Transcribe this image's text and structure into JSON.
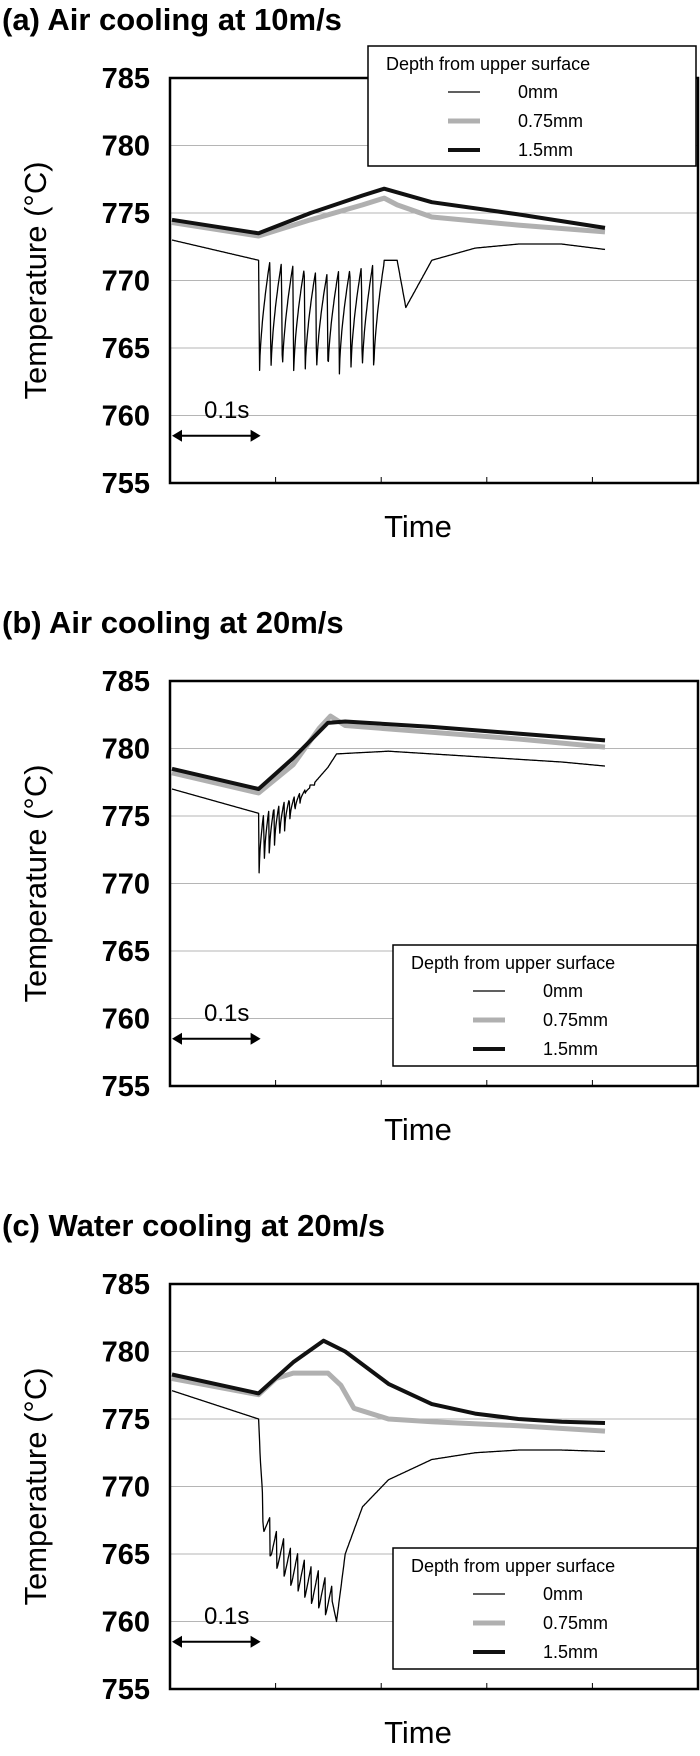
{
  "chart_data": [
    {
      "type": "line",
      "title": "(a) Air cooling at 10m/s",
      "xlabel": "Time",
      "ylabel": "Temperature (°C)",
      "ylim": [
        755,
        785
      ],
      "yticks": [
        "785",
        "780",
        "775",
        "770",
        "765",
        "760",
        "755"
      ],
      "x_unit": "s",
      "xlim": [
        0,
        0.5
      ],
      "grid": "horizontal",
      "scale_bar": {
        "label": "0.1s",
        "from": 0,
        "to": 0.1,
        "y": 758.5
      },
      "legend": {
        "title": "Depth from upper surface",
        "placement": "top-right"
      },
      "series": [
        {
          "name": "0mm",
          "color": "#000000",
          "width": 1.3,
          "base": [
            [
              0,
              773
            ],
            [
              0.1,
              771.5
            ],
            [
              0.165,
              770.5
            ],
            [
              0.245,
              771.5
            ],
            [
              0.26,
              771.5
            ],
            [
              0.27,
              768
            ],
            [
              0.3,
              771.5
            ],
            [
              0.35,
              772.4
            ],
            [
              0.4,
              772.7
            ],
            [
              0.45,
              772.7
            ],
            [
              0.5,
              772.3
            ]
          ],
          "spikes": {
            "start": 0.1,
            "end": 0.245,
            "count": 11,
            "min": 763,
            "depth": 0.6
          }
        },
        {
          "name": "0.75mm",
          "color": "#b0b0b0",
          "width": 5,
          "points": [
            [
              0,
              774.3
            ],
            [
              0.1,
              773.3
            ],
            [
              0.16,
              774.5
            ],
            [
              0.22,
              775.6
            ],
            [
              0.245,
              776.1
            ],
            [
              0.26,
              775.6
            ],
            [
              0.3,
              774.7
            ],
            [
              0.4,
              774.1
            ],
            [
              0.5,
              773.6
            ]
          ]
        },
        {
          "name": "1.5mm",
          "color": "#111111",
          "width": 4,
          "points": [
            [
              0,
              774.5
            ],
            [
              0.1,
              773.5
            ],
            [
              0.16,
              775
            ],
            [
              0.22,
              776.3
            ],
            [
              0.245,
              776.8
            ],
            [
              0.3,
              775.8
            ],
            [
              0.4,
              774.9
            ],
            [
              0.5,
              773.9
            ]
          ]
        }
      ]
    },
    {
      "type": "line",
      "title": "(b) Air cooling at 20m/s",
      "xlabel": "Time",
      "ylabel": "Temperature (°C)",
      "ylim": [
        755,
        785
      ],
      "yticks": [
        "785",
        "780",
        "775",
        "770",
        "765",
        "760",
        "755"
      ],
      "x_unit": "s",
      "xlim": [
        0,
        0.5
      ],
      "grid": "horizontal",
      "scale_bar": {
        "label": "0.1s",
        "from": 0,
        "to": 0.1,
        "y": 758.5
      },
      "legend": {
        "title": "Depth from upper surface",
        "placement": "bottom-right"
      },
      "series": [
        {
          "name": "0mm",
          "color": "#000000",
          "width": 1.3,
          "base": [
            [
              0,
              777
            ],
            [
              0.1,
              775.2
            ],
            [
              0.165,
              777.5
            ],
            [
              0.18,
              778.6
            ],
            [
              0.19,
              779.6
            ],
            [
              0.25,
              779.8
            ],
            [
              0.35,
              779.4
            ],
            [
              0.45,
              779
            ],
            [
              0.5,
              778.7
            ]
          ],
          "spikes": {
            "start": 0.1,
            "end": 0.165,
            "count": 11,
            "min": 770.3,
            "slope": 0.1,
            "depth": 0.55
          }
        },
        {
          "name": "0.75mm",
          "color": "#b0b0b0",
          "width": 5,
          "points": [
            [
              0,
              778.2
            ],
            [
              0.1,
              776.7
            ],
            [
              0.14,
              778.8
            ],
            [
              0.17,
              781.5
            ],
            [
              0.183,
              782.4
            ],
            [
              0.2,
              781.7
            ],
            [
              0.3,
              781.2
            ],
            [
              0.4,
              780.7
            ],
            [
              0.5,
              780.1
            ]
          ]
        },
        {
          "name": "1.5mm",
          "color": "#111111",
          "width": 4,
          "points": [
            [
              0,
              778.5
            ],
            [
              0.1,
              777
            ],
            [
              0.14,
              779.3
            ],
            [
              0.18,
              781.9
            ],
            [
              0.2,
              782
            ],
            [
              0.3,
              781.6
            ],
            [
              0.4,
              781.1
            ],
            [
              0.5,
              780.6
            ]
          ]
        }
      ]
    },
    {
      "type": "line",
      "title": "(c) Water cooling at 20m/s",
      "xlabel": "Time",
      "ylabel": "Temperature (°C)",
      "ylim": [
        755,
        785
      ],
      "yticks": [
        "785",
        "780",
        "775",
        "770",
        "765",
        "760",
        "755"
      ],
      "x_unit": "s",
      "xlim": [
        0,
        0.5
      ],
      "grid": "horizontal",
      "scale_bar": {
        "label": "0.1s",
        "from": 0,
        "to": 0.1,
        "y": 758.5
      },
      "legend": {
        "title": "Depth from upper surface",
        "placement": "bottom-right"
      },
      "series": [
        {
          "name": "0mm",
          "color": "#000000",
          "width": 1.3,
          "base": [
            [
              0,
              777.1
            ],
            [
              0.1,
              775
            ],
            [
              0.102,
              772
            ],
            [
              0.106,
              768
            ],
            [
              0.115,
              766
            ],
            [
              0.14,
              764
            ],
            [
              0.175,
              762.2
            ],
            [
              0.185,
              761.5
            ],
            [
              0.19,
              760
            ],
            [
              0.2,
              765
            ],
            [
              0.22,
              768.5
            ],
            [
              0.25,
              770.5
            ],
            [
              0.3,
              772
            ],
            [
              0.35,
              772.5
            ],
            [
              0.4,
              772.7
            ],
            [
              0.45,
              772.7
            ],
            [
              0.5,
              772.6
            ]
          ],
          "spikes": {
            "start": 0.105,
            "end": 0.185,
            "count": 10,
            "amp": 1.6
          }
        },
        {
          "name": "0.75mm",
          "color": "#b0b0b0",
          "width": 5,
          "points": [
            [
              0,
              778
            ],
            [
              0.1,
              776.8
            ],
            [
              0.12,
              778
            ],
            [
              0.14,
              778.4
            ],
            [
              0.18,
              778.4
            ],
            [
              0.195,
              777.5
            ],
            [
              0.21,
              775.8
            ],
            [
              0.25,
              775
            ],
            [
              0.3,
              774.8
            ],
            [
              0.4,
              774.5
            ],
            [
              0.5,
              774.1
            ]
          ]
        },
        {
          "name": "1.5mm",
          "color": "#111111",
          "width": 4,
          "points": [
            [
              0,
              778.3
            ],
            [
              0.1,
              776.9
            ],
            [
              0.14,
              779.2
            ],
            [
              0.175,
              780.8
            ],
            [
              0.2,
              780
            ],
            [
              0.25,
              777.6
            ],
            [
              0.3,
              776.1
            ],
            [
              0.35,
              775.4
            ],
            [
              0.4,
              775
            ],
            [
              0.45,
              774.8
            ],
            [
              0.5,
              774.7
            ]
          ]
        }
      ]
    }
  ]
}
